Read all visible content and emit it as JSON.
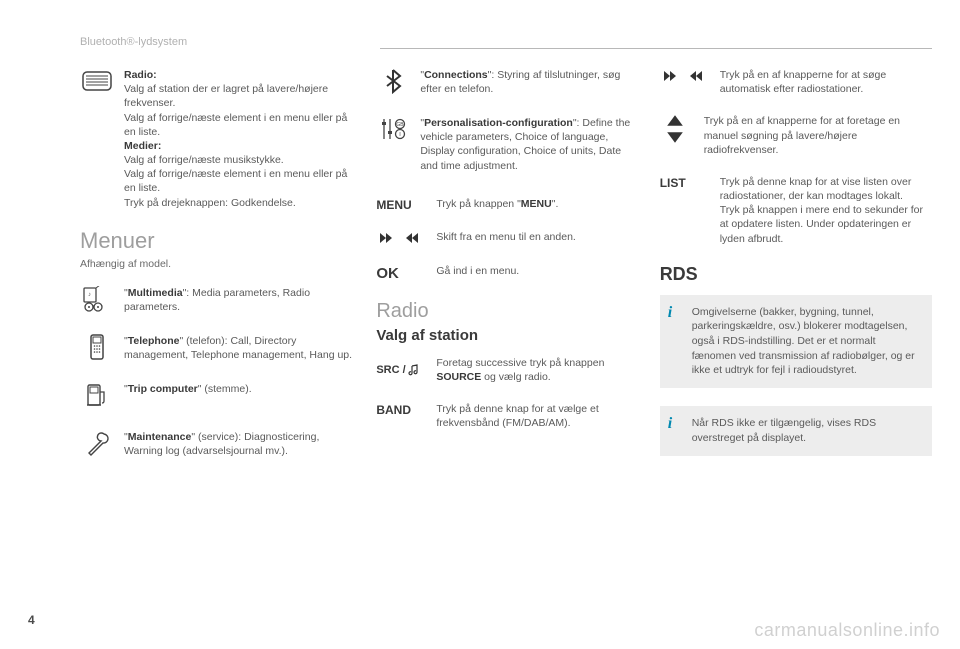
{
  "header": "Bluetooth®-lydsystem",
  "page_number": "4",
  "watermark": "carmanualsonline.info",
  "col1": {
    "radio_block": "<b>Radio:</b><br>Valg af station der er lagret på lavere/højere frekvenser.<br>Valg af forrige/næste element i en menu eller på en liste.<br><b>Medier:</b><br>Valg af forrige/næste musikstykke.<br>Valg af forrige/næste element i en menu eller på en liste.<br>Tryk på drejeknappen: Godkendelse.",
    "section_title": "Menuer",
    "section_sub": "Afhængig af model.",
    "multimedia": "\"<b>Multimedia</b>\": Media parameters, Radio parameters.",
    "telephone": "\"<b>Telephone</b>\" (telefon): Call, Directory management, Telephone management, Hang up.",
    "trip": "\"<b>Trip computer</b>\" (stemme).",
    "maintenance": "\"<b>Maintenance</b>\" (service): Diagnosticering, Warning log (advarselsjournal mv.)."
  },
  "col2": {
    "connections": "\"<b>Connections</b>\": Styring af tilslutninger, søg efter en telefon.",
    "personalisation": "\"<b>Personalisation-configuration</b>\": Define the vehicle parameters, Choice of language, Display configuration, Choice of units, Date and time adjustment.",
    "menu_label": "MENU",
    "menu_text": "Tryk på knappen \"<b>MENU</b>\".",
    "switch_text": "Skift fra en menu til en anden.",
    "ok_label": "OK",
    "ok_text": "Gå ind i en menu.",
    "radio_title": "Radio",
    "valg_title": "Valg af station",
    "src_label": "SRC /",
    "src_text": "Foretag successive tryk på knappen <b>SOURCE</b> og vælg radio.",
    "band_label": "BAND",
    "band_text": "Tryk på denne knap for at vælge et frekvensbånd (FM/DAB/AM)."
  },
  "col3": {
    "seek_text": "Tryk på en af knapperne for at søge automatisk efter radiostationer.",
    "manual_text": "Tryk på en af knapperne for at foretage en manuel søgning på lavere/højere radiofrekvenser.",
    "list_label": "LIST",
    "list_text": "Tryk på denne knap for at vise listen over radiostationer, der kan modtages lokalt.<br>Tryk på knappen i mere end to sekunder for at opdatere listen. Under opdateringen er lyden afbrudt.",
    "rds_title": "RDS",
    "info1": "Omgivelserne (bakker, bygning, tunnel, parkeringskældre, osv.) blokerer modtagelsen, også i RDS-indstilling. Det er et normalt fænomen ved transmission af radiobølger, og er ikke et udtryk for fejl i radioudstyret.",
    "info2": "Når RDS ikke er tilgængelig, vises RDS overstreget på displayet."
  },
  "colors": {
    "accent": "#0088b0",
    "bg_info": "#ededed"
  }
}
